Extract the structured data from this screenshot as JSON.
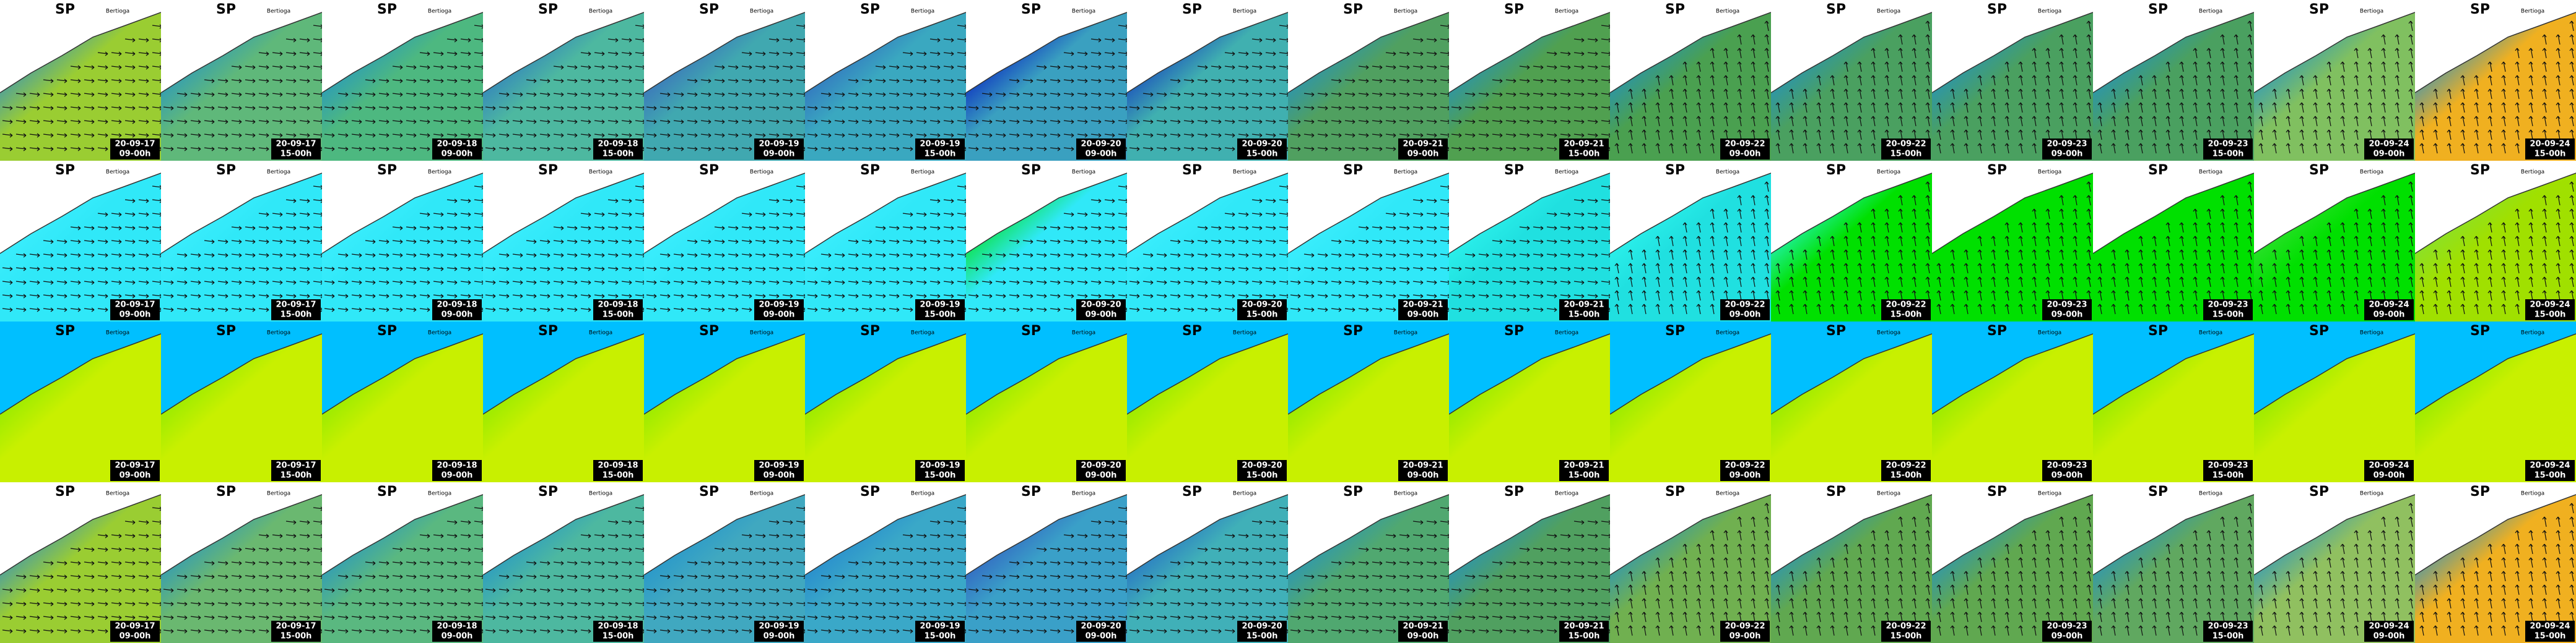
{
  "title": "SP",
  "places": [
    "Bertioga"
  ],
  "columns": [
    {
      "date": "20-09-17",
      "time": "09-00h"
    },
    {
      "date": "20-09-17",
      "time": "15-00h"
    },
    {
      "date": "20-09-18",
      "time": "09-00h"
    },
    {
      "date": "20-09-18",
      "time": "15-00h"
    },
    {
      "date": "20-09-19",
      "time": "09-00h"
    },
    {
      "date": "20-09-19",
      "time": "15-00h"
    },
    {
      "date": "20-09-20",
      "time": "09-00h"
    },
    {
      "date": "20-09-20",
      "time": "15-00h"
    },
    {
      "date": "20-09-21",
      "time": "09-00h"
    },
    {
      "date": "20-09-21",
      "time": "15-00h"
    },
    {
      "date": "20-09-22",
      "time": "09-00h"
    },
    {
      "date": "20-09-22",
      "time": "15-00h"
    },
    {
      "date": "20-09-23",
      "time": "09-00h"
    },
    {
      "date": "20-09-23",
      "time": "15-00h"
    },
    {
      "date": "20-09-24",
      "time": "09-00h"
    },
    {
      "date": "20-09-24",
      "time": "15-00h"
    }
  ],
  "rows": [
    {
      "land": "#ffffff",
      "arrows": true,
      "fills": [
        [
          "#2a8ad0",
          "#9acd32"
        ],
        [
          "#1e90d0",
          "#5fb87a"
        ],
        [
          "#1e90d0",
          "#4db880"
        ],
        [
          "#2a70c8",
          "#4db8a0"
        ],
        [
          "#3a5fc0",
          "#40a8b0"
        ],
        [
          "#3060c0",
          "#3aa8c0"
        ],
        [
          "#0010c0",
          "#3aa0c0"
        ],
        [
          "#1030c0",
          "#40b0b0"
        ],
        [
          "#1e90d0",
          "#50a060"
        ],
        [
          "#1e90d0",
          "#50a050"
        ],
        [
          "#1e90d0",
          "#4aa050"
        ],
        [
          "#1e90d0",
          "#4aa060"
        ],
        [
          "#1e90d0",
          "#4aa060"
        ],
        [
          "#1e90d0",
          "#4aa060"
        ],
        [
          "#1e90d0",
          "#80c060"
        ],
        [
          "#1e90d0",
          "#f0b020"
        ]
      ]
    },
    {
      "land": "#ffffff",
      "arrows": true,
      "fills": [
        [
          "#40f0ff",
          "#30e8f8"
        ],
        [
          "#40f0ff",
          "#30e8f8"
        ],
        [
          "#40f0ff",
          "#30e8f8"
        ],
        [
          "#40f0ff",
          "#30e8f8"
        ],
        [
          "#40f0ff",
          "#30e8f8"
        ],
        [
          "#40f0ff",
          "#30e8f8"
        ],
        [
          "#00e000",
          "#30e8f8"
        ],
        [
          "#40f0ff",
          "#30e8f8"
        ],
        [
          "#40f0ff",
          "#30e8f8"
        ],
        [
          "#30f8f0",
          "#20e0e0"
        ],
        [
          "#30f8f0",
          "#20e0e0"
        ],
        [
          "#30f8f0",
          "#00e000"
        ],
        [
          "#00e000",
          "#00e000"
        ],
        [
          "#00e000",
          "#00e000"
        ],
        [
          "#40e040",
          "#00e000"
        ],
        [
          "#80e040",
          "#a0e000"
        ]
      ]
    },
    {
      "land": "#00bfff",
      "arrows": false,
      "fills": [
        [
          "#80e800",
          "#c8f000"
        ],
        [
          "#80e800",
          "#c8f000"
        ],
        [
          "#80e800",
          "#c8f000"
        ],
        [
          "#80e800",
          "#c8f000"
        ],
        [
          "#80e800",
          "#c8f000"
        ],
        [
          "#80e800",
          "#c8f000"
        ],
        [
          "#80e800",
          "#c8f000"
        ],
        [
          "#80e800",
          "#c8f000"
        ],
        [
          "#80e800",
          "#c8f000"
        ],
        [
          "#80e800",
          "#c8f000"
        ],
        [
          "#80e800",
          "#c8f000"
        ],
        [
          "#80e800",
          "#c8f000"
        ],
        [
          "#80e800",
          "#c8f000"
        ],
        [
          "#80e800",
          "#c8f000"
        ],
        [
          "#80e800",
          "#c8f000"
        ],
        [
          "#80e800",
          "#c8f000"
        ]
      ]
    },
    {
      "land": "#ffffff",
      "arrows": true,
      "fills": [
        [
          "#2a8ad0",
          "#9acd32"
        ],
        [
          "#1e90d0",
          "#6ab870"
        ],
        [
          "#1e90d0",
          "#5ab880"
        ],
        [
          "#1e90d0",
          "#4db8a0"
        ],
        [
          "#1e90d0",
          "#40a8c0"
        ],
        [
          "#2080d0",
          "#3aa8c8"
        ],
        [
          "#3050c0",
          "#3aa0c8"
        ],
        [
          "#2060c8",
          "#40b0b8"
        ],
        [
          "#1e90d0",
          "#50a870"
        ],
        [
          "#1e90d0",
          "#50a060"
        ],
        [
          "#1e90d0",
          "#70b050"
        ],
        [
          "#1e90d0",
          "#60a850"
        ],
        [
          "#1e90d0",
          "#60a850"
        ],
        [
          "#1e90d0",
          "#60a860"
        ],
        [
          "#1e90d0",
          "#90c060"
        ],
        [
          "#1e90d0",
          "#f0b020"
        ]
      ]
    }
  ]
}
